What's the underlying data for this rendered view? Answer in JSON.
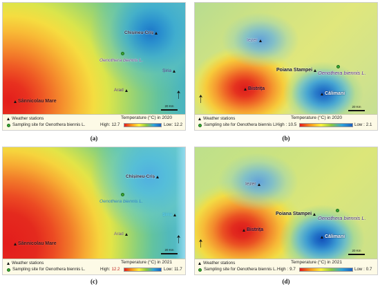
{
  "panels": {
    "a": {
      "caption": "(a)",
      "map": {
        "stations": {
          "chisineu_cris": "Chișineu-Criș",
          "siria": "Șiria",
          "arad": "Arad",
          "sannicolau_mare": "Sânnicolau Mare"
        },
        "sampling_site_label": "Oenothera biennis L.",
        "scale_label": "20 Km"
      },
      "legend": {
        "weather_stations": "Weather stations",
        "sampling_site": "Sampling site for Oenothera biennis L.",
        "title": "Temperature (°C) in 2020",
        "high_label": "High:",
        "high_value": "12.7",
        "low_label": "Low:",
        "low_value": "12.2"
      }
    },
    "b": {
      "caption": "(b)",
      "map": {
        "stations": {
          "iezer": "Iezer",
          "poiana_stampei": "Poiana Stampei",
          "bistrita": "Bistrița",
          "calimani": "Călimani"
        },
        "sampling_site_label": "Oenothera biennis L.",
        "scale_label": "20 Km"
      },
      "legend": {
        "weather_stations": "Weather stations",
        "sampling_site": "Sampling site for Oenothera biennis L.",
        "title": "Temperature (°C) in 2020",
        "high_label": "High :",
        "high_value": "10.5",
        "low_label": "Low :",
        "low_value": "2.1"
      }
    },
    "c": {
      "caption": "(c)",
      "map": {
        "stations": {
          "chisineu_cris": "Chișineu-Criș",
          "siria": "Șiria",
          "arad": "Arad",
          "sannicolau_mare": "Sânnicolau Mare"
        },
        "sampling_site_label": "Oenothera biennis L.",
        "scale_label": "20 Km"
      },
      "legend": {
        "weather_stations": "Weather stations",
        "sampling_site": "Sampling site for Oenothera biennis L.",
        "title": "Temperature (°C) in 2021",
        "high_label": "High:",
        "high_value": "12.2",
        "low_label": "Low:",
        "low_value": "11.7"
      }
    },
    "d": {
      "caption": "(d)",
      "map": {
        "stations": {
          "iezer": "Iezer",
          "poiana_stampei": "Poiana Stampei",
          "bistrita": "Bistrița",
          "calimani": "Călimani"
        },
        "sampling_site_label": "Oenothera biennis L.",
        "scale_label": "20 Km"
      },
      "legend": {
        "weather_stations": "Weather stations",
        "sampling_site": "Sampling site for Oenothera biennis L.",
        "title": "Temperature (°C) in 2021",
        "high_label": "High :",
        "high_value": "9.7",
        "low_label": "Low :",
        "low_value": "0.7"
      }
    }
  },
  "symbols": {
    "weather_station_icon": "triangle-icon",
    "sampling_site_icon": "circle-icon",
    "weather_station_color": "#111111",
    "sampling_site_color": "#3aa935"
  },
  "color_ramp": [
    "#e31a1c",
    "#f7941d",
    "#fff23a",
    "#8cc63f",
    "#2fa4d9",
    "#1a5fbf"
  ]
}
